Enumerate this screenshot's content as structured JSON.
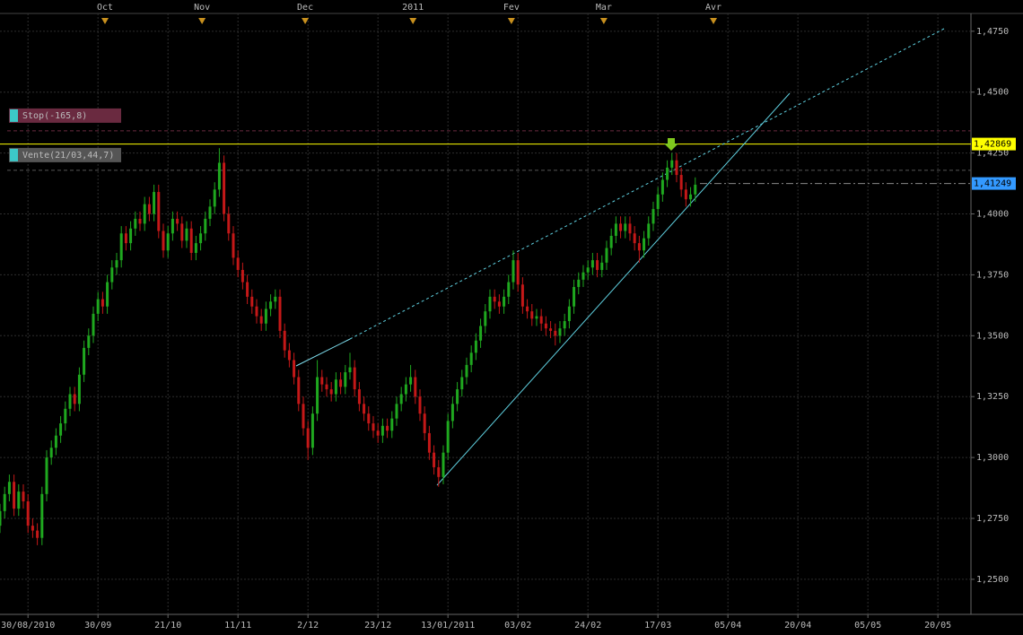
{
  "chart_data": {
    "type": "candlestick",
    "up_color": "#1fa81f",
    "down_color": "#c41818",
    "xlim": [
      0,
      207.7
    ],
    "ylim": [
      1.2356,
      1.4823
    ],
    "grid": true,
    "yticks": [
      {
        "value": 1.25,
        "label": "1,2500"
      },
      {
        "value": 1.275,
        "label": "1,2750"
      },
      {
        "value": 1.3,
        "label": "1,3000"
      },
      {
        "value": 1.325,
        "label": "1,3250"
      },
      {
        "value": 1.35,
        "label": "1,3500"
      },
      {
        "value": 1.375,
        "label": "1,3750"
      },
      {
        "value": 1.4,
        "label": "1,4000"
      },
      {
        "value": 1.425,
        "label": "1,4250"
      },
      {
        "value": 1.45,
        "label": "1,4500"
      },
      {
        "value": 1.475,
        "label": "1,4750"
      }
    ],
    "xticks": [
      {
        "value": 6,
        "label": "30/08/2010"
      },
      {
        "value": 21,
        "label": "30/09"
      },
      {
        "value": 36,
        "label": "21/10"
      },
      {
        "value": 51,
        "label": "11/11"
      },
      {
        "value": 66,
        "label": "2/12"
      },
      {
        "value": 81,
        "label": "23/12"
      },
      {
        "value": 96,
        "label": "13/01/2011"
      },
      {
        "value": 111,
        "label": "03/02"
      },
      {
        "value": 126,
        "label": "24/02"
      },
      {
        "value": 141,
        "label": "17/03"
      },
      {
        "value": 156,
        "label": "05/04"
      },
      {
        "value": 171,
        "label": "20/04"
      },
      {
        "value": 186,
        "label": "05/05"
      },
      {
        "value": 201,
        "label": "20/05"
      }
    ],
    "x2ticks": [
      {
        "value": 22.5,
        "label": "Oct"
      },
      {
        "value": 43.3,
        "label": "Nov"
      },
      {
        "value": 65.4,
        "label": "Dec"
      },
      {
        "value": 88.5,
        "label": "2011"
      },
      {
        "value": 109.6,
        "label": "Fev"
      },
      {
        "value": 129.4,
        "label": "Mar"
      },
      {
        "value": 152.9,
        "label": "Avr"
      }
    ],
    "levels": [
      {
        "value": 1.42869,
        "label": "1,42869",
        "color": "#ffff00"
      },
      {
        "value": 1.41249,
        "label": "1,41249",
        "color": "#3399ff"
      }
    ],
    "orders": [
      {
        "value": 1.4341,
        "label": "Stop(-165,8)",
        "color": "#6a2a40"
      },
      {
        "value": 1.4179,
        "label": "Vente(21/03,44,7)",
        "color": "#555555"
      }
    ],
    "candles": [
      [
        1.272,
        1.281,
        1.269,
        1.278
      ],
      [
        1.278,
        1.288,
        1.275,
        1.285
      ],
      [
        1.285,
        1.293,
        1.282,
        1.29
      ],
      [
        1.29,
        1.293,
        1.276,
        1.279
      ],
      [
        1.279,
        1.289,
        1.276,
        1.286
      ],
      [
        1.286,
        1.289,
        1.279,
        1.282
      ],
      [
        1.282,
        1.285,
        1.269,
        1.272
      ],
      [
        1.272,
        1.275,
        1.267,
        1.27
      ],
      [
        1.27,
        1.273,
        1.264,
        1.267
      ],
      [
        1.267,
        1.288,
        1.264,
        1.285
      ],
      [
        1.285,
        1.303,
        1.282,
        1.3
      ],
      [
        1.3,
        1.307,
        1.297,
        1.304
      ],
      [
        1.304,
        1.312,
        1.301,
        1.309
      ],
      [
        1.309,
        1.317,
        1.306,
        1.314
      ],
      [
        1.314,
        1.323,
        1.311,
        1.32
      ],
      [
        1.32,
        1.329,
        1.317,
        1.326
      ],
      [
        1.326,
        1.329,
        1.319,
        1.322
      ],
      [
        1.322,
        1.337,
        1.319,
        1.334
      ],
      [
        1.334,
        1.348,
        1.331,
        1.345
      ],
      [
        1.345,
        1.353,
        1.342,
        1.35
      ],
      [
        1.35,
        1.362,
        1.347,
        1.359
      ],
      [
        1.359,
        1.368,
        1.356,
        1.365
      ],
      [
        1.365,
        1.368,
        1.359,
        1.362
      ],
      [
        1.362,
        1.375,
        1.359,
        1.372
      ],
      [
        1.372,
        1.381,
        1.369,
        1.378
      ],
      [
        1.378,
        1.384,
        1.375,
        1.381
      ],
      [
        1.381,
        1.395,
        1.378,
        1.392
      ],
      [
        1.392,
        1.395,
        1.385,
        1.388
      ],
      [
        1.388,
        1.397,
        1.385,
        1.394
      ],
      [
        1.394,
        1.401,
        1.391,
        1.398
      ],
      [
        1.398,
        1.401,
        1.393,
        1.396
      ],
      [
        1.396,
        1.407,
        1.393,
        1.404
      ],
      [
        1.404,
        1.407,
        1.397,
        1.4
      ],
      [
        1.4,
        1.412,
        1.397,
        1.409
      ],
      [
        1.409,
        1.412,
        1.39,
        1.393
      ],
      [
        1.393,
        1.396,
        1.382,
        1.385
      ],
      [
        1.385,
        1.395,
        1.382,
        1.392
      ],
      [
        1.392,
        1.401,
        1.389,
        1.398
      ],
      [
        1.398,
        1.401,
        1.393,
        1.396
      ],
      [
        1.396,
        1.399,
        1.386,
        1.389
      ],
      [
        1.389,
        1.397,
        1.386,
        1.394
      ],
      [
        1.394,
        1.397,
        1.381,
        1.384
      ],
      [
        1.384,
        1.391,
        1.381,
        1.388
      ],
      [
        1.388,
        1.395,
        1.385,
        1.392
      ],
      [
        1.392,
        1.401,
        1.389,
        1.398
      ],
      [
        1.398,
        1.406,
        1.395,
        1.403
      ],
      [
        1.403,
        1.413,
        1.4,
        1.41
      ],
      [
        1.41,
        1.427,
        1.407,
        1.421
      ],
      [
        1.421,
        1.424,
        1.397,
        1.4
      ],
      [
        1.4,
        1.403,
        1.389,
        1.392
      ],
      [
        1.392,
        1.395,
        1.379,
        1.382
      ],
      [
        1.382,
        1.385,
        1.374,
        1.377
      ],
      [
        1.377,
        1.38,
        1.369,
        1.372
      ],
      [
        1.372,
        1.375,
        1.363,
        1.366
      ],
      [
        1.366,
        1.369,
        1.359,
        1.362
      ],
      [
        1.362,
        1.365,
        1.355,
        1.358
      ],
      [
        1.358,
        1.361,
        1.352,
        1.355
      ],
      [
        1.355,
        1.364,
        1.352,
        1.361
      ],
      [
        1.361,
        1.367,
        1.358,
        1.364
      ],
      [
        1.364,
        1.369,
        1.361,
        1.366
      ],
      [
        1.366,
        1.369,
        1.349,
        1.352
      ],
      [
        1.352,
        1.355,
        1.341,
        1.344
      ],
      [
        1.344,
        1.347,
        1.337,
        1.34
      ],
      [
        1.34,
        1.343,
        1.33,
        1.333
      ],
      [
        1.333,
        1.336,
        1.319,
        1.322
      ],
      [
        1.322,
        1.325,
        1.309,
        1.312
      ],
      [
        1.312,
        1.315,
        1.299,
        1.304
      ],
      [
        1.304,
        1.321,
        1.301,
        1.318
      ],
      [
        1.318,
        1.34,
        1.315,
        1.333
      ],
      [
        1.333,
        1.336,
        1.327,
        1.33
      ],
      [
        1.33,
        1.333,
        1.325,
        1.328
      ],
      [
        1.328,
        1.331,
        1.323,
        1.326
      ],
      [
        1.326,
        1.335,
        1.323,
        1.332
      ],
      [
        1.332,
        1.335,
        1.326,
        1.329
      ],
      [
        1.329,
        1.338,
        1.326,
        1.335
      ],
      [
        1.335,
        1.343,
        1.332,
        1.337
      ],
      [
        1.337,
        1.34,
        1.325,
        1.328
      ],
      [
        1.328,
        1.331,
        1.319,
        1.322
      ],
      [
        1.322,
        1.325,
        1.315,
        1.318
      ],
      [
        1.318,
        1.321,
        1.311,
        1.314
      ],
      [
        1.314,
        1.317,
        1.308,
        1.311
      ],
      [
        1.311,
        1.314,
        1.306,
        1.309
      ],
      [
        1.309,
        1.316,
        1.306,
        1.313
      ],
      [
        1.313,
        1.316,
        1.308,
        1.311
      ],
      [
        1.311,
        1.319,
        1.308,
        1.316
      ],
      [
        1.316,
        1.325,
        1.313,
        1.322
      ],
      [
        1.322,
        1.329,
        1.319,
        1.326
      ],
      [
        1.326,
        1.333,
        1.323,
        1.33
      ],
      [
        1.33,
        1.338,
        1.327,
        1.333
      ],
      [
        1.333,
        1.336,
        1.322,
        1.325
      ],
      [
        1.325,
        1.328,
        1.315,
        1.318
      ],
      [
        1.318,
        1.321,
        1.307,
        1.31
      ],
      [
        1.31,
        1.313,
        1.299,
        1.302
      ],
      [
        1.302,
        1.305,
        1.293,
        1.296
      ],
      [
        1.296,
        1.299,
        1.288,
        1.292
      ],
      [
        1.292,
        1.305,
        1.289,
        1.302
      ],
      [
        1.302,
        1.318,
        1.299,
        1.315
      ],
      [
        1.315,
        1.325,
        1.312,
        1.322
      ],
      [
        1.322,
        1.331,
        1.319,
        1.328
      ],
      [
        1.328,
        1.336,
        1.325,
        1.333
      ],
      [
        1.333,
        1.341,
        1.33,
        1.338
      ],
      [
        1.338,
        1.346,
        1.335,
        1.343
      ],
      [
        1.343,
        1.351,
        1.34,
        1.348
      ],
      [
        1.348,
        1.357,
        1.345,
        1.354
      ],
      [
        1.354,
        1.363,
        1.351,
        1.36
      ],
      [
        1.36,
        1.369,
        1.357,
        1.366
      ],
      [
        1.366,
        1.369,
        1.361,
        1.364
      ],
      [
        1.364,
        1.367,
        1.359,
        1.362
      ],
      [
        1.362,
        1.369,
        1.359,
        1.366
      ],
      [
        1.366,
        1.375,
        1.363,
        1.372
      ],
      [
        1.372,
        1.385,
        1.369,
        1.381
      ],
      [
        1.381,
        1.384,
        1.368,
        1.371
      ],
      [
        1.371,
        1.374,
        1.359,
        1.362
      ],
      [
        1.362,
        1.365,
        1.357,
        1.36
      ],
      [
        1.36,
        1.363,
        1.354,
        1.357
      ],
      [
        1.357,
        1.361,
        1.354,
        1.358
      ],
      [
        1.358,
        1.361,
        1.352,
        1.355
      ],
      [
        1.355,
        1.358,
        1.35,
        1.353
      ],
      [
        1.353,
        1.356,
        1.349,
        1.352
      ],
      [
        1.352,
        1.355,
        1.346,
        1.35
      ],
      [
        1.35,
        1.356,
        1.347,
        1.353
      ],
      [
        1.353,
        1.359,
        1.35,
        1.356
      ],
      [
        1.356,
        1.365,
        1.353,
        1.362
      ],
      [
        1.362,
        1.373,
        1.359,
        1.37
      ],
      [
        1.37,
        1.376,
        1.367,
        1.373
      ],
      [
        1.373,
        1.379,
        1.37,
        1.376
      ],
      [
        1.376,
        1.381,
        1.373,
        1.378
      ],
      [
        1.378,
        1.384,
        1.375,
        1.381
      ],
      [
        1.381,
        1.384,
        1.374,
        1.377
      ],
      [
        1.377,
        1.383,
        1.374,
        1.38
      ],
      [
        1.38,
        1.389,
        1.377,
        1.386
      ],
      [
        1.386,
        1.394,
        1.383,
        1.391
      ],
      [
        1.391,
        1.399,
        1.388,
        1.396
      ],
      [
        1.396,
        1.399,
        1.39,
        1.393
      ],
      [
        1.393,
        1.399,
        1.39,
        1.396
      ],
      [
        1.396,
        1.399,
        1.389,
        1.392
      ],
      [
        1.392,
        1.395,
        1.385,
        1.388
      ],
      [
        1.388,
        1.391,
        1.38,
        1.385
      ],
      [
        1.385,
        1.393,
        1.382,
        1.39
      ],
      [
        1.39,
        1.399,
        1.387,
        1.396
      ],
      [
        1.396,
        1.405,
        1.393,
        1.402
      ],
      [
        1.402,
        1.411,
        1.399,
        1.408
      ],
      [
        1.408,
        1.417,
        1.405,
        1.414
      ],
      [
        1.414,
        1.422,
        1.411,
        1.419
      ],
      [
        1.419,
        1.425,
        1.416,
        1.422
      ],
      [
        1.422,
        1.425,
        1.413,
        1.416
      ],
      [
        1.416,
        1.419,
        1.407,
        1.41
      ],
      [
        1.41,
        1.413,
        1.403,
        1.406
      ],
      [
        1.406,
        1.411,
        1.403,
        1.408
      ],
      [
        1.408,
        1.415,
        1.405,
        1.412
      ]
    ]
  }
}
